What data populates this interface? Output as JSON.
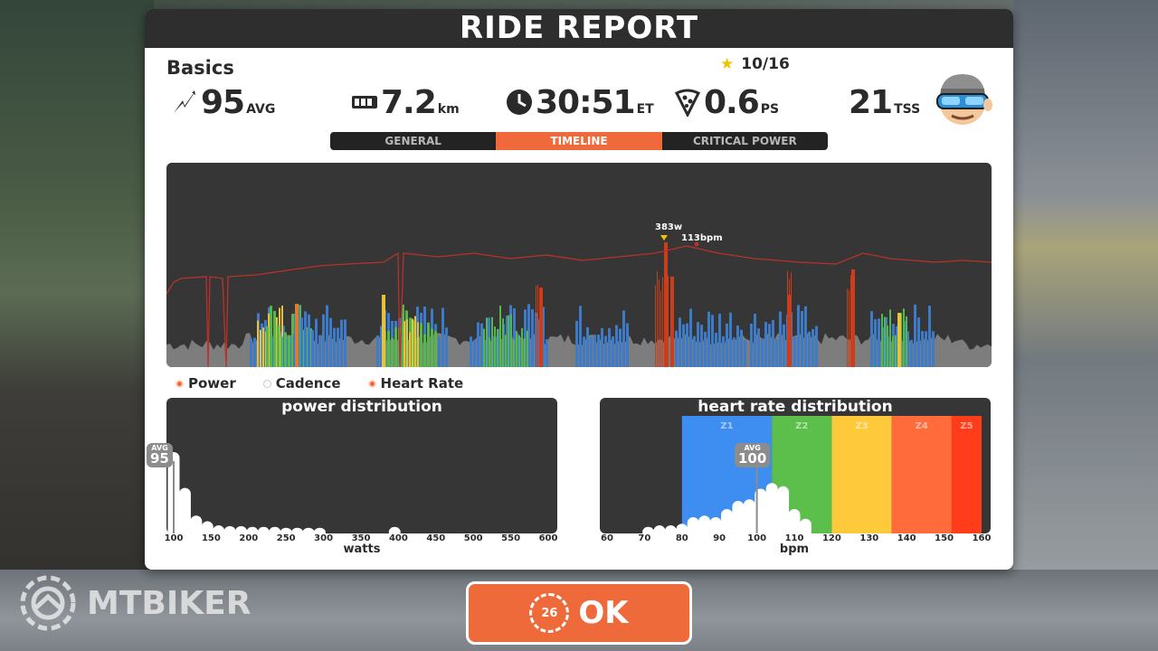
{
  "title": "RIDE REPORT",
  "basics": {
    "label": "Basics"
  },
  "rating": {
    "icon": "star-icon",
    "value": "10/16"
  },
  "stats": [
    {
      "icon": "power-bolt-icon",
      "value": "95",
      "unit": "AVG"
    },
    {
      "icon": "odometer-icon",
      "value": "7.2",
      "unit": "km"
    },
    {
      "icon": "clock-icon",
      "value": "30:51",
      "unit": "ET"
    },
    {
      "icon": "pizza-slice-icon",
      "value": "0.6",
      "unit": "PS"
    },
    {
      "icon": "",
      "value": "21",
      "unit": "TSS"
    }
  ],
  "tabs": [
    {
      "label": "GENERAL",
      "active": false
    },
    {
      "label": "TIMELINE",
      "active": true
    },
    {
      "label": "CRITICAL POWER",
      "active": false
    }
  ],
  "timeline": {
    "power_peak_label": "383w",
    "hr_peak_label": "113bpm",
    "colors": {
      "background": "#363636",
      "power_gray": "#7d7d7d",
      "z_blue": "#3d7bc8",
      "z_green": "#57b74f",
      "z_yellow": "#e6c23a",
      "z_orange": "#e07a30",
      "z_red": "#cc3d1a",
      "heart_rate_line": "#b8322a"
    }
  },
  "legend": [
    {
      "label": "Power",
      "on": true
    },
    {
      "label": "Cadence",
      "on": false
    },
    {
      "label": "Heart Rate",
      "on": true
    }
  ],
  "chart_data": [
    {
      "type": "bar",
      "title": "power distribution",
      "xlabel": "watts",
      "x_ticks": [
        100,
        150,
        200,
        250,
        300,
        350,
        400,
        450,
        500,
        550,
        600
      ],
      "xlim": [
        100,
        600
      ],
      "avg_label": "AVG",
      "avg": 95,
      "bins": [
        {
          "x": 100,
          "v": 1.0
        },
        {
          "x": 115,
          "v": 0.56
        },
        {
          "x": 130,
          "v": 0.22
        },
        {
          "x": 145,
          "v": 0.15
        },
        {
          "x": 160,
          "v": 0.1
        },
        {
          "x": 175,
          "v": 0.09
        },
        {
          "x": 190,
          "v": 0.09
        },
        {
          "x": 205,
          "v": 0.08
        },
        {
          "x": 220,
          "v": 0.08
        },
        {
          "x": 235,
          "v": 0.08
        },
        {
          "x": 250,
          "v": 0.07
        },
        {
          "x": 265,
          "v": 0.07
        },
        {
          "x": 280,
          "v": 0.07
        },
        {
          "x": 295,
          "v": 0.07
        },
        {
          "x": 395,
          "v": 0.08
        }
      ]
    },
    {
      "type": "bar",
      "title": "heart rate distribution",
      "xlabel": "bpm",
      "x_ticks": [
        60,
        70,
        80,
        90,
        100,
        110,
        120,
        130,
        140,
        150,
        160
      ],
      "xlim": [
        60,
        160
      ],
      "avg_label": "AVG",
      "avg": 100,
      "zones": [
        {
          "label": "Z1",
          "from": 80,
          "to": 104,
          "color": "#3d8ef0"
        },
        {
          "label": "Z2",
          "from": 104,
          "to": 120,
          "color": "#5cbf4b"
        },
        {
          "label": "Z3",
          "from": 120,
          "to": 136,
          "color": "#ffc93c"
        },
        {
          "label": "Z4",
          "from": 136,
          "to": 152,
          "color": "#ff6b3a"
        },
        {
          "label": "Z5",
          "from": 152,
          "to": 160,
          "color": "#ff3d1a"
        }
      ],
      "bins": [
        {
          "x": 71,
          "v": 0.08
        },
        {
          "x": 74,
          "v": 0.1
        },
        {
          "x": 77,
          "v": 0.1
        },
        {
          "x": 80,
          "v": 0.12
        },
        {
          "x": 83,
          "v": 0.2
        },
        {
          "x": 86,
          "v": 0.22
        },
        {
          "x": 89,
          "v": 0.2
        },
        {
          "x": 92,
          "v": 0.3
        },
        {
          "x": 95,
          "v": 0.4
        },
        {
          "x": 98,
          "v": 0.42
        },
        {
          "x": 101,
          "v": 0.55
        },
        {
          "x": 104,
          "v": 0.62
        },
        {
          "x": 107,
          "v": 0.58
        },
        {
          "x": 110,
          "v": 0.3
        },
        {
          "x": 113,
          "v": 0.18
        }
      ]
    }
  ],
  "ok": {
    "label": "OK",
    "countdown": "26"
  },
  "watermark": {
    "text": "MTBIKER"
  }
}
